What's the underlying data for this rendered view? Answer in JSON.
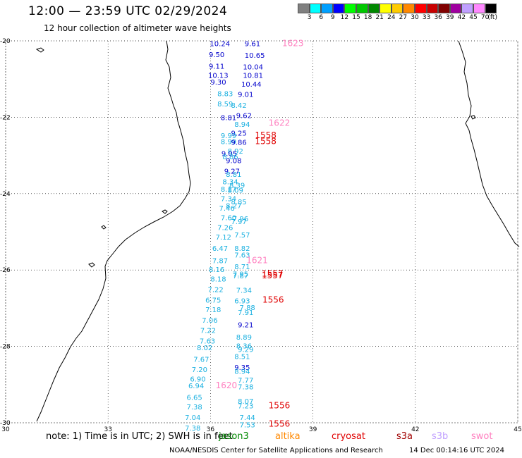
{
  "header": {
    "title": "12:00 — 23:59 UTC 02/29/2024",
    "subtitle": "12 hour collection of altimeter wave heights"
  },
  "legend": {
    "unit": "(ft)",
    "bins": [
      {
        "label": "3",
        "color": "#808080"
      },
      {
        "label": "6",
        "color": "#00ffff"
      },
      {
        "label": "9",
        "color": "#00a0ff"
      },
      {
        "label": "12",
        "color": "#0000ff"
      },
      {
        "label": "15",
        "color": "#00ff00"
      },
      {
        "label": "18",
        "color": "#00c800"
      },
      {
        "label": "21",
        "color": "#008800"
      },
      {
        "label": "24",
        "color": "#ffff00"
      },
      {
        "label": "27",
        "color": "#ffcc00"
      },
      {
        "label": "30",
        "color": "#ff8800"
      },
      {
        "label": "33",
        "color": "#ff0000"
      },
      {
        "label": "36",
        "color": "#c80000"
      },
      {
        "label": "39",
        "color": "#800000"
      },
      {
        "label": "42",
        "color": "#a000a0"
      },
      {
        "label": "45",
        "color": "#c0a0ff"
      },
      {
        "label": "70",
        "color": "#ff88ff"
      },
      {
        "label": "",
        "color": "#000000"
      }
    ]
  },
  "axes": {
    "lon_ticks": [
      "30",
      "33",
      "36",
      "39",
      "42",
      "45"
    ],
    "lat_ticks": [
      "-20",
      "-22",
      "-24",
      "-26",
      "-28",
      "-30"
    ]
  },
  "observations": [
    {
      "lon": 35.98,
      "lat": -20.14,
      "value": "10.24",
      "color": "#0000cc"
    },
    {
      "lon": 37.0,
      "lat": -20.14,
      "value": "9.61",
      "color": "#0000cc"
    },
    {
      "lon": 38.1,
      "lat": -20.14,
      "value": "1623",
      "color": "#ff80c0"
    },
    {
      "lon": 35.95,
      "lat": -20.42,
      "value": "9.50",
      "color": "#0000cc"
    },
    {
      "lon": 37.0,
      "lat": -20.44,
      "value": "10.65",
      "color": "#0000cc"
    },
    {
      "lon": 35.95,
      "lat": -20.73,
      "value": "9.11",
      "color": "#0000cc"
    },
    {
      "lon": 36.95,
      "lat": -20.75,
      "value": "10.04",
      "color": "#0000cc"
    },
    {
      "lon": 35.93,
      "lat": -20.97,
      "value": "10.13",
      "color": "#0000cc"
    },
    {
      "lon": 36.95,
      "lat": -20.97,
      "value": "10.81",
      "color": "#0000cc"
    },
    {
      "lon": 36.0,
      "lat": -21.14,
      "value": "9.30",
      "color": "#0000cc"
    },
    {
      "lon": 36.9,
      "lat": -21.2,
      "value": "10.44",
      "color": "#0000cc"
    },
    {
      "lon": 36.2,
      "lat": -21.45,
      "value": "8.83",
      "color": "#1ab0e0"
    },
    {
      "lon": 36.8,
      "lat": -21.47,
      "value": "9.01",
      "color": "#0000cc"
    },
    {
      "lon": 36.2,
      "lat": -21.72,
      "value": "8.59",
      "color": "#1ab0e0"
    },
    {
      "lon": 36.6,
      "lat": -21.75,
      "value": "8.42",
      "color": "#1ab0e0"
    },
    {
      "lon": 36.75,
      "lat": -22.02,
      "value": "9.62",
      "color": "#0000cc"
    },
    {
      "lon": 36.3,
      "lat": -22.08,
      "value": "8.81",
      "color": "#0000cc"
    },
    {
      "lon": 36.7,
      "lat": -22.25,
      "value": "8.94",
      "color": "#1ab0e0"
    },
    {
      "lon": 37.7,
      "lat": -22.22,
      "value": "1622",
      "color": "#ff80c0"
    },
    {
      "lon": 36.6,
      "lat": -22.48,
      "value": "9.25",
      "color": "#0000cc"
    },
    {
      "lon": 36.3,
      "lat": -22.55,
      "value": "9.99",
      "color": "#1ab0e0"
    },
    {
      "lon": 37.3,
      "lat": -22.55,
      "value": "1558",
      "color": "#e00000"
    },
    {
      "lon": 36.3,
      "lat": -22.7,
      "value": "8.99",
      "color": "#1ab0e0"
    },
    {
      "lon": 36.6,
      "lat": -22.72,
      "value": "9.86",
      "color": "#0000cc"
    },
    {
      "lon": 37.3,
      "lat": -22.7,
      "value": "1558",
      "color": "#e00000"
    },
    {
      "lon": 36.5,
      "lat": -22.95,
      "value": "8.92",
      "color": "#1ab0e0"
    },
    {
      "lon": 36.32,
      "lat": -23.02,
      "value": "9.05",
      "color": "#0000cc"
    },
    {
      "lon": 36.35,
      "lat": -23.1,
      "value": "8.86",
      "color": "#1ab0e0"
    },
    {
      "lon": 36.45,
      "lat": -23.2,
      "value": "9.08",
      "color": "#0000cc"
    },
    {
      "lon": 36.4,
      "lat": -23.48,
      "value": "9.27",
      "color": "#0000cc"
    },
    {
      "lon": 36.45,
      "lat": -23.56,
      "value": "8.81",
      "color": "#1ab0e0"
    },
    {
      "lon": 36.35,
      "lat": -23.75,
      "value": "8.34",
      "color": "#1ab0e0"
    },
    {
      "lon": 36.55,
      "lat": -23.85,
      "value": "8.39",
      "color": "#1ab0e0"
    },
    {
      "lon": 36.3,
      "lat": -23.95,
      "value": "8.17",
      "color": "#1ab0e0"
    },
    {
      "lon": 36.5,
      "lat": -23.98,
      "value": "8.09",
      "color": "#1ab0e0"
    },
    {
      "lon": 36.3,
      "lat": -24.2,
      "value": "7.34",
      "color": "#1ab0e0"
    },
    {
      "lon": 36.6,
      "lat": -24.28,
      "value": "8.85",
      "color": "#1ab0e0"
    },
    {
      "lon": 36.45,
      "lat": -24.38,
      "value": "8.27",
      "color": "#1ab0e0"
    },
    {
      "lon": 36.25,
      "lat": -24.45,
      "value": "7.46",
      "color": "#1ab0e0"
    },
    {
      "lon": 36.3,
      "lat": -24.7,
      "value": "7.60",
      "color": "#1ab0e0"
    },
    {
      "lon": 36.65,
      "lat": -24.72,
      "value": "7.96",
      "color": "#1ab0e0"
    },
    {
      "lon": 36.6,
      "lat": -24.8,
      "value": "7.97",
      "color": "#1ab0e0"
    },
    {
      "lon": 36.2,
      "lat": -24.95,
      "value": "7.26",
      "color": "#1ab0e0"
    },
    {
      "lon": 36.15,
      "lat": -25.2,
      "value": "7.12",
      "color": "#1ab0e0"
    },
    {
      "lon": 36.7,
      "lat": -25.15,
      "value": "7.57",
      "color": "#1ab0e0"
    },
    {
      "lon": 36.05,
      "lat": -25.5,
      "value": "6.47",
      "color": "#1ab0e0"
    },
    {
      "lon": 36.7,
      "lat": -25.5,
      "value": "8.82",
      "color": "#1ab0e0"
    },
    {
      "lon": 36.7,
      "lat": -25.67,
      "value": "7.63",
      "color": "#1ab0e0"
    },
    {
      "lon": 36.05,
      "lat": -25.82,
      "value": "7.87",
      "color": "#1ab0e0"
    },
    {
      "lon": 37.05,
      "lat": -25.82,
      "value": "1621",
      "color": "#ff80c0"
    },
    {
      "lon": 36.7,
      "lat": -25.98,
      "value": "8.71",
      "color": "#1ab0e0"
    },
    {
      "lon": 35.95,
      "lat": -26.05,
      "value": "8.16",
      "color": "#1ab0e0"
    },
    {
      "lon": 36.65,
      "lat": -26.17,
      "value": "7.95",
      "color": "#1ab0e0"
    },
    {
      "lon": 36.65,
      "lat": -26.22,
      "value": "7.87",
      "color": "#1ab0e0"
    },
    {
      "lon": 37.5,
      "lat": -26.17,
      "value": "1557",
      "color": "#e00000"
    },
    {
      "lon": 37.5,
      "lat": -26.22,
      "value": "1557",
      "color": "#e00000"
    },
    {
      "lon": 36.0,
      "lat": -26.3,
      "value": "8.18",
      "color": "#1ab0e0"
    },
    {
      "lon": 35.92,
      "lat": -26.58,
      "value": "7.22",
      "color": "#1ab0e0"
    },
    {
      "lon": 36.75,
      "lat": -26.6,
      "value": "7.34",
      "color": "#1ab0e0"
    },
    {
      "lon": 35.85,
      "lat": -26.85,
      "value": "6.75",
      "color": "#1ab0e0"
    },
    {
      "lon": 36.7,
      "lat": -26.87,
      "value": "6.93",
      "color": "#1ab0e0"
    },
    {
      "lon": 37.52,
      "lat": -26.85,
      "value": "1556",
      "color": "#e00000"
    },
    {
      "lon": 35.85,
      "lat": -27.1,
      "value": "7.18",
      "color": "#1ab0e0"
    },
    {
      "lon": 36.85,
      "lat": -27.05,
      "value": "7.88",
      "color": "#1ab0e0"
    },
    {
      "lon": 36.8,
      "lat": -27.18,
      "value": "7.91",
      "color": "#1ab0e0"
    },
    {
      "lon": 35.75,
      "lat": -27.38,
      "value": "7.06",
      "color": "#1ab0e0"
    },
    {
      "lon": 36.8,
      "lat": -27.5,
      "value": "9.21",
      "color": "#0000cc"
    },
    {
      "lon": 35.7,
      "lat": -27.65,
      "value": "7.22",
      "color": "#1ab0e0"
    },
    {
      "lon": 36.75,
      "lat": -27.82,
      "value": "8.89",
      "color": "#1ab0e0"
    },
    {
      "lon": 35.68,
      "lat": -27.92,
      "value": "7.63",
      "color": "#1ab0e0"
    },
    {
      "lon": 36.75,
      "lat": -28.05,
      "value": "8.36",
      "color": "#1ab0e0"
    },
    {
      "lon": 35.6,
      "lat": -28.1,
      "value": "8.02",
      "color": "#1ab0e0"
    },
    {
      "lon": 36.8,
      "lat": -28.15,
      "value": "9.29",
      "color": "#1ab0e0"
    },
    {
      "lon": 36.7,
      "lat": -28.33,
      "value": "8.51",
      "color": "#1ab0e0"
    },
    {
      "lon": 35.5,
      "lat": -28.4,
      "value": "7.67",
      "color": "#1ab0e0"
    },
    {
      "lon": 36.7,
      "lat": -28.62,
      "value": "9.35",
      "color": "#0000cc"
    },
    {
      "lon": 35.45,
      "lat": -28.67,
      "value": "7.20",
      "color": "#1ab0e0"
    },
    {
      "lon": 36.7,
      "lat": -28.72,
      "value": "8.94",
      "color": "#1ab0e0"
    },
    {
      "lon": 36.8,
      "lat": -28.95,
      "value": "7.77",
      "color": "#1ab0e0"
    },
    {
      "lon": 35.4,
      "lat": -28.92,
      "value": "6.90",
      "color": "#1ab0e0"
    },
    {
      "lon": 35.35,
      "lat": -29.1,
      "value": "6.94",
      "color": "#1ab0e0"
    },
    {
      "lon": 36.15,
      "lat": -29.1,
      "value": "1620",
      "color": "#ff80c0"
    },
    {
      "lon": 36.8,
      "lat": -29.12,
      "value": "7.38",
      "color": "#1ab0e0"
    },
    {
      "lon": 35.3,
      "lat": -29.4,
      "value": "6.65",
      "color": "#1ab0e0"
    },
    {
      "lon": 36.8,
      "lat": -29.5,
      "value": "8.07",
      "color": "#1ab0e0"
    },
    {
      "lon": 35.3,
      "lat": -29.65,
      "value": "7.38",
      "color": "#1ab0e0"
    },
    {
      "lon": 36.8,
      "lat": -29.62,
      "value": "7.23",
      "color": "#1ab0e0"
    },
    {
      "lon": 37.7,
      "lat": -29.62,
      "value": "1556",
      "color": "#e00000"
    },
    {
      "lon": 35.25,
      "lat": -29.93,
      "value": "7.04",
      "color": "#1ab0e0"
    },
    {
      "lon": 36.85,
      "lat": -29.93,
      "value": "7.44",
      "color": "#1ab0e0"
    },
    {
      "lon": 35.25,
      "lat": -30.2,
      "value": "7.38",
      "color": "#1ab0e0"
    },
    {
      "lon": 36.85,
      "lat": -30.12,
      "value": "7.53",
      "color": "#1ab0e0"
    },
    {
      "lon": 37.7,
      "lat": -30.1,
      "value": "1556",
      "color": "#e00000"
    }
  ],
  "footer": {
    "note": "note:  1) Time is in UTC; 2) SWH is in feet",
    "missions": [
      {
        "label": "jason3",
        "color": "#008800"
      },
      {
        "label": "altika",
        "color": "#ff8800"
      },
      {
        "label": "cryosat",
        "color": "#e00000"
      },
      {
        "label": "s3a",
        "color": "#a00000"
      },
      {
        "label": "s3b",
        "color": "#c0a0ff"
      },
      {
        "label": "swot",
        "color": "#ff80c0"
      }
    ],
    "credit": "NOAA/NESDIS Center for Satellite Applications and Research",
    "generated": "14 Dec 00:14:16 UTC 2024"
  }
}
